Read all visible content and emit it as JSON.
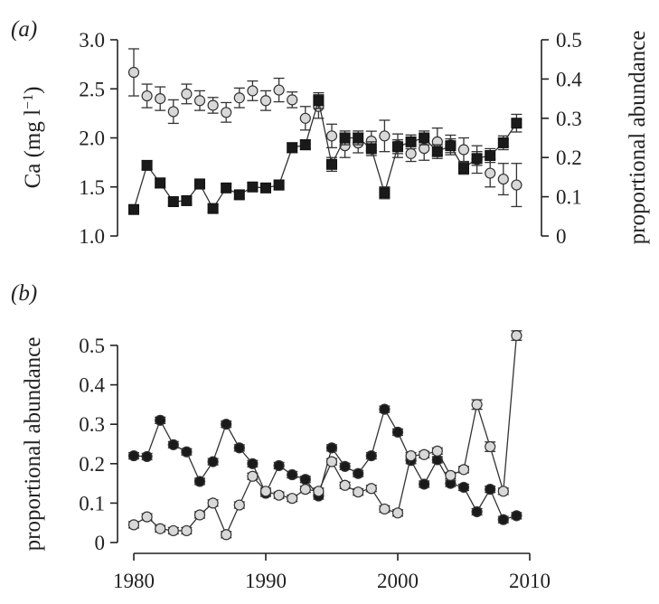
{
  "chart_data": [
    {
      "type": "line",
      "panel_label": "(a)",
      "x_range": [
        1979,
        2010
      ],
      "ylabel": "Ca (mg l⁻¹)",
      "ylabel_parts": {
        "main": "Ca (mg l",
        "sup": "−1",
        "close": ")"
      },
      "ylim": [
        1.0,
        3.0
      ],
      "yticks": [
        "1.0",
        "1.5",
        "2.0",
        "2.5",
        "3.0"
      ],
      "yticks_values": [
        1.0,
        1.5,
        2.0,
        2.5,
        3.0
      ],
      "y2label": "proportional abundance",
      "y2lim": [
        0,
        0.5
      ],
      "y2ticks": [
        "0",
        "0.1",
        "0.2",
        "0.3",
        "0.4",
        "0.5"
      ],
      "y2ticks_values": [
        0,
        0.1,
        0.2,
        0.3,
        0.4,
        0.5
      ],
      "grid": false,
      "series": [
        {
          "marker": "circle",
          "color": "#d8d8d8",
          "axis": "right",
          "connected": false,
          "x": [
            1980,
            1981,
            1982,
            1983,
            1984,
            1985,
            1986,
            1987,
            1988,
            1989,
            1990,
            1991,
            1992,
            1993,
            1994,
            1995,
            1996,
            1997,
            1998,
            1999,
            2000,
            2001,
            2002,
            2003,
            2004,
            2005,
            2006,
            2007,
            2008,
            2009
          ],
          "values": [
            0.417,
            0.357,
            0.35,
            0.317,
            0.362,
            0.345,
            0.333,
            0.315,
            0.352,
            0.37,
            0.345,
            0.372,
            0.347,
            0.3,
            0.33,
            0.255,
            0.23,
            0.237,
            0.242,
            0.255,
            0.23,
            0.21,
            0.223,
            0.24,
            0.232,
            0.22,
            0.195,
            0.16,
            0.145,
            0.13
          ],
          "err": [
            0.06,
            0.03,
            0.03,
            0.03,
            0.025,
            0.025,
            0.02,
            0.025,
            0.025,
            0.025,
            0.025,
            0.03,
            0.02,
            0.03,
            0.03,
            0.03,
            0.03,
            0.025,
            0.025,
            0.04,
            0.03,
            0.02,
            0.03,
            0.035,
            0.025,
            0.03,
            0.035,
            0.035,
            0.04,
            0.055
          ]
        },
        {
          "marker": "square",
          "color": "#1a1a1a",
          "axis": "left",
          "connected": true,
          "x": [
            1980,
            1981,
            1982,
            1983,
            1984,
            1985,
            1986,
            1987,
            1988,
            1989,
            1990,
            1991,
            1992,
            1993,
            1994,
            1995,
            1996,
            1997,
            1998,
            1999,
            2000,
            2001,
            2002,
            2003,
            2004,
            2005,
            2006,
            2007,
            2008,
            2009
          ],
          "values": [
            1.27,
            1.72,
            1.54,
            1.35,
            1.36,
            1.53,
            1.28,
            1.49,
            1.42,
            1.5,
            1.49,
            1.52,
            1.9,
            1.93,
            2.38,
            1.73,
            2.0,
            2.0,
            1.89,
            1.44,
            1.91,
            1.96,
            2.0,
            1.86,
            1.92,
            1.69,
            1.79,
            1.82,
            1.95,
            2.15
          ],
          "err": [
            0.04,
            0.04,
            0.05,
            0.04,
            0.04,
            0.05,
            0.04,
            0.04,
            0.04,
            0.04,
            0.04,
            0.05,
            0.05,
            0.05,
            0.08,
            0.07,
            0.07,
            0.07,
            0.07,
            0.06,
            0.07,
            0.07,
            0.07,
            0.07,
            0.07,
            0.06,
            0.07,
            0.07,
            0.07,
            0.09
          ]
        }
      ]
    },
    {
      "type": "line",
      "panel_label": "(b)",
      "x_range": [
        1979,
        2010
      ],
      "xticks": [
        "1980",
        "1990",
        "2000",
        "2010"
      ],
      "xticks_values": [
        1980,
        1990,
        2000,
        2010
      ],
      "ylabel": "proportional abundance",
      "ylim": [
        0,
        0.5
      ],
      "yticks": [
        "0",
        "0.1",
        "0.2",
        "0.3",
        "0.4",
        "0.5"
      ],
      "yticks_values": [
        0,
        0.1,
        0.2,
        0.3,
        0.4,
        0.5
      ],
      "grid": false,
      "series": [
        {
          "marker": "circle",
          "color": "#1a1a1a",
          "connected": true,
          "x": [
            1980,
            1981,
            1982,
            1983,
            1984,
            1985,
            1986,
            1987,
            1988,
            1989,
            1990,
            1991,
            1992,
            1993,
            1994,
            1995,
            1996,
            1997,
            1998,
            1999,
            2000,
            2001,
            2002,
            2003,
            2004,
            2005,
            2006,
            2007,
            2008,
            2009
          ],
          "values": [
            0.22,
            0.218,
            0.31,
            0.248,
            0.23,
            0.155,
            0.205,
            0.3,
            0.24,
            0.2,
            0.125,
            0.195,
            0.172,
            0.16,
            0.118,
            0.24,
            0.193,
            0.175,
            0.22,
            0.338,
            0.28,
            0.208,
            0.148,
            0.21,
            0.15,
            0.14,
            0.078,
            0.135,
            0.058,
            0.068
          ],
          "err": [
            0.008,
            0.008,
            0.008,
            0.008,
            0.008,
            0.008,
            0.008,
            0.008,
            0.008,
            0.008,
            0.008,
            0.008,
            0.008,
            0.008,
            0.008,
            0.008,
            0.008,
            0.008,
            0.008,
            0.008,
            0.008,
            0.008,
            0.008,
            0.008,
            0.008,
            0.008,
            0.008,
            0.008,
            0.008,
            0.008
          ]
        },
        {
          "marker": "circle",
          "color": "#d8d8d8",
          "connected": true,
          "x": [
            1980,
            1981,
            1982,
            1983,
            1984,
            1985,
            1986,
            1987,
            1988,
            1989,
            1990,
            1991,
            1992,
            1993,
            1994,
            1995,
            1996,
            1997,
            1998,
            1999,
            2000,
            2001,
            2002,
            2003,
            2004,
            2005,
            2006,
            2007,
            2008,
            2009
          ],
          "values": [
            0.045,
            0.065,
            0.035,
            0.03,
            0.03,
            0.07,
            0.1,
            0.02,
            0.095,
            0.168,
            0.13,
            0.12,
            0.112,
            0.135,
            0.13,
            0.205,
            0.145,
            0.128,
            0.137,
            0.085,
            0.075,
            0.22,
            0.223,
            0.232,
            0.17,
            0.185,
            0.35,
            0.243,
            0.13,
            0.525
          ],
          "err": [
            0.008,
            0.008,
            0.008,
            0.008,
            0.008,
            0.008,
            0.008,
            0.008,
            0.008,
            0.008,
            0.008,
            0.008,
            0.008,
            0.008,
            0.008,
            0.008,
            0.008,
            0.008,
            0.008,
            0.008,
            0.008,
            0.008,
            0.008,
            0.008,
            0.008,
            0.008,
            0.012,
            0.012,
            0.008,
            0.012
          ]
        }
      ]
    }
  ]
}
